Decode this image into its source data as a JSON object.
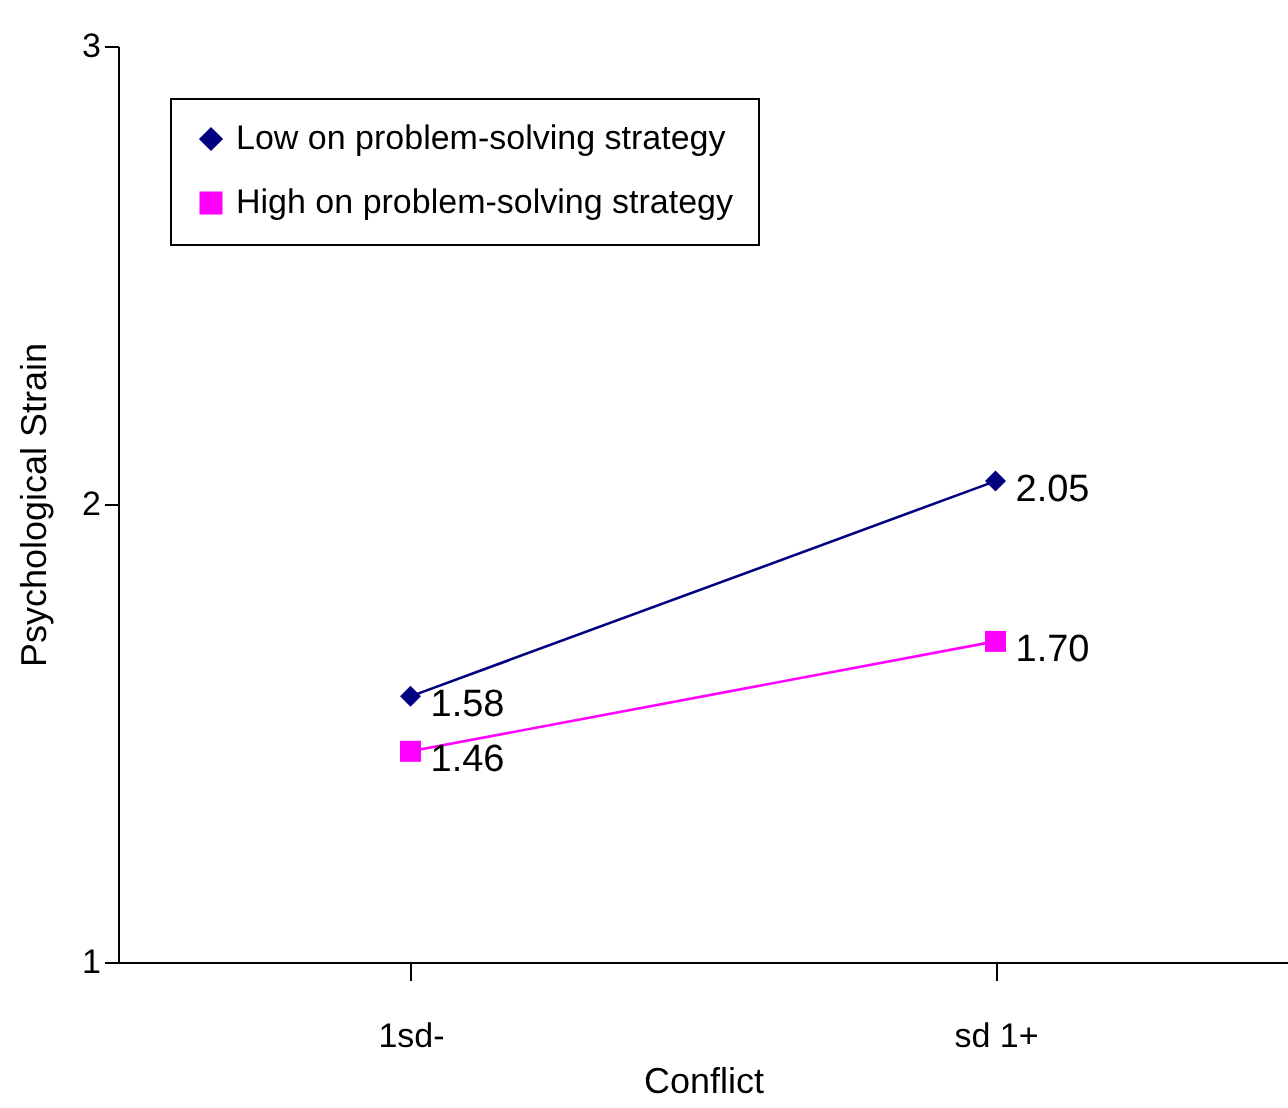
{
  "chart_data": {
    "type": "line",
    "xlabel": "Conflict",
    "ylabel": "Psychological Strain",
    "categories": [
      "1sd-",
      "sd 1+"
    ],
    "series": [
      {
        "name": "Low on problem-solving strategy",
        "color": "#000080",
        "marker": "diamond",
        "values": [
          1.58,
          2.05
        ],
        "value_labels": [
          "1.58",
          "2.05"
        ]
      },
      {
        "name": "High on problem-solving strategy",
        "color": "#ff00ff",
        "marker": "square",
        "values": [
          1.46,
          1.7
        ],
        "value_labels": [
          "1.46",
          "1.70"
        ]
      }
    ],
    "ylim": [
      1,
      3
    ],
    "yticks": [
      1,
      2,
      3
    ],
    "grid": false,
    "legend": "top left"
  }
}
